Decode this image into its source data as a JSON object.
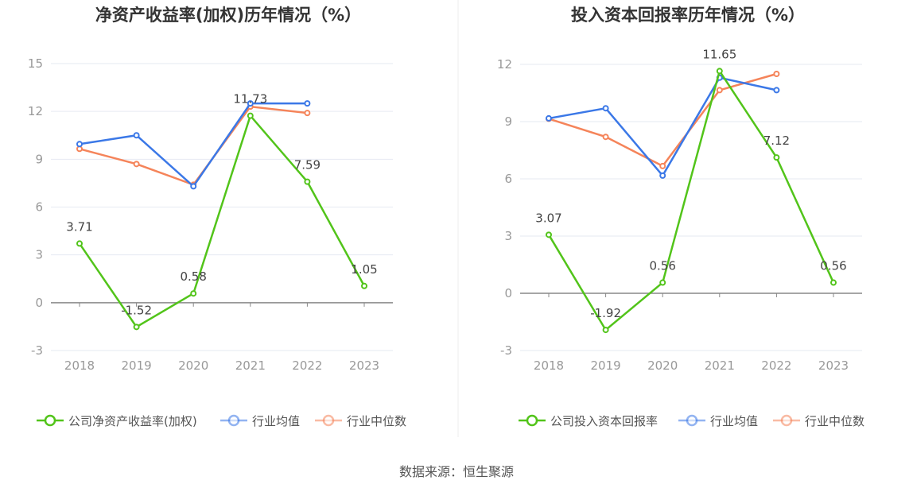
{
  "source": "数据来源：恒生聚源",
  "chart_data": [
    {
      "type": "line",
      "title": "净资产收益率(加权)历年情况（%）",
      "categories": [
        "2018",
        "2019",
        "2020",
        "2021",
        "2022",
        "2023"
      ],
      "ylim": [
        -3,
        15
      ],
      "yticks": [
        -3,
        0,
        3,
        6,
        9,
        12,
        15
      ],
      "grid": true,
      "legend": "bottom",
      "series": [
        {
          "name": "公司净资产收益率(加权)",
          "color": "#52c41a",
          "values": [
            3.71,
            -1.52,
            0.58,
            11.73,
            7.59,
            1.05
          ],
          "labels": [
            "3.71",
            "-1.52",
            "0.58",
            "11.73",
            "7.59",
            "1.05"
          ]
        },
        {
          "name": "行业均值",
          "color": "#3b78e7",
          "values": [
            9.95,
            10.5,
            7.3,
            12.5,
            12.5,
            null
          ]
        },
        {
          "name": "行业中位数",
          "color": "#f5845a",
          "values": [
            9.65,
            8.7,
            7.4,
            12.3,
            11.9,
            null
          ]
        }
      ]
    },
    {
      "type": "line",
      "title": "投入资本回报率历年情况（%）",
      "categories": [
        "2018",
        "2019",
        "2020",
        "2021",
        "2022",
        "2023"
      ],
      "ylim": [
        -3,
        12
      ],
      "yticks": [
        -3,
        0,
        3,
        6,
        9,
        12
      ],
      "grid": true,
      "legend": "bottom",
      "series": [
        {
          "name": "公司投入资本回报率",
          "color": "#52c41a",
          "values": [
            3.07,
            -1.92,
            0.56,
            11.65,
            7.12,
            0.56
          ],
          "labels": [
            "3.07",
            "-1.92",
            "0.56",
            "11.65",
            "7.12",
            "0.56"
          ]
        },
        {
          "name": "行业均值",
          "color": "#3b78e7",
          "values": [
            9.17,
            9.7,
            6.17,
            11.3,
            10.65,
            null
          ]
        },
        {
          "name": "行业中位数",
          "color": "#f5845a",
          "values": [
            9.15,
            8.2,
            6.67,
            10.65,
            11.5,
            null
          ]
        }
      ]
    }
  ]
}
